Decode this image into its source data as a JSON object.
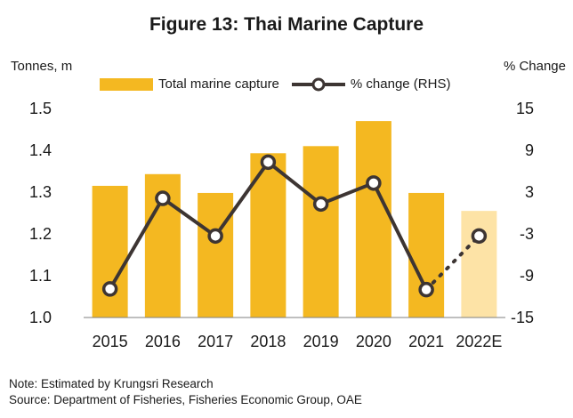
{
  "header": {
    "title": "Figure 13: Thai Marine Capture",
    "left_unit": "Tonnes, m",
    "right_unit": "% Change"
  },
  "legend": {
    "bar_label": "Total marine capture",
    "line_label": "% change (RHS)"
  },
  "notes": {
    "note": "Note: Estimated by Krungsri Research",
    "source": "Source: Department of Fisheries, Fisheries Economic Group, OAE"
  },
  "colors": {
    "bar": "#f4b821",
    "bar_estimate": "#fde3a6",
    "line": "#3d3533",
    "axis": "#7f7f7f"
  },
  "chart_data": {
    "type": "bar",
    "categories": [
      "2015",
      "2016",
      "2017",
      "2018",
      "2019",
      "2020",
      "2021",
      "2022E"
    ],
    "series": [
      {
        "name": "Total marine capture",
        "axis": "left",
        "type": "bar",
        "values": [
          1.315,
          1.343,
          1.298,
          1.393,
          1.41,
          1.47,
          1.298,
          1.255
        ],
        "estimated_from_index": 7
      },
      {
        "name": "% change (RHS)",
        "axis": "right",
        "type": "line",
        "values": [
          -10.9,
          2.1,
          -3.3,
          7.3,
          1.3,
          4.3,
          -11.0,
          -3.3
        ],
        "dotted_from_index": 6
      }
    ],
    "ylim_left": [
      1.0,
      1.5
    ],
    "yticks_left": [
      "1.0",
      "1.1",
      "1.2",
      "1.3",
      "1.4",
      "1.5"
    ],
    "ylim_right": [
      -15,
      15
    ],
    "yticks_right": [
      "-15",
      "-9",
      "-3",
      "3",
      "9",
      "15"
    ],
    "grid": false,
    "legend_position": "top"
  }
}
